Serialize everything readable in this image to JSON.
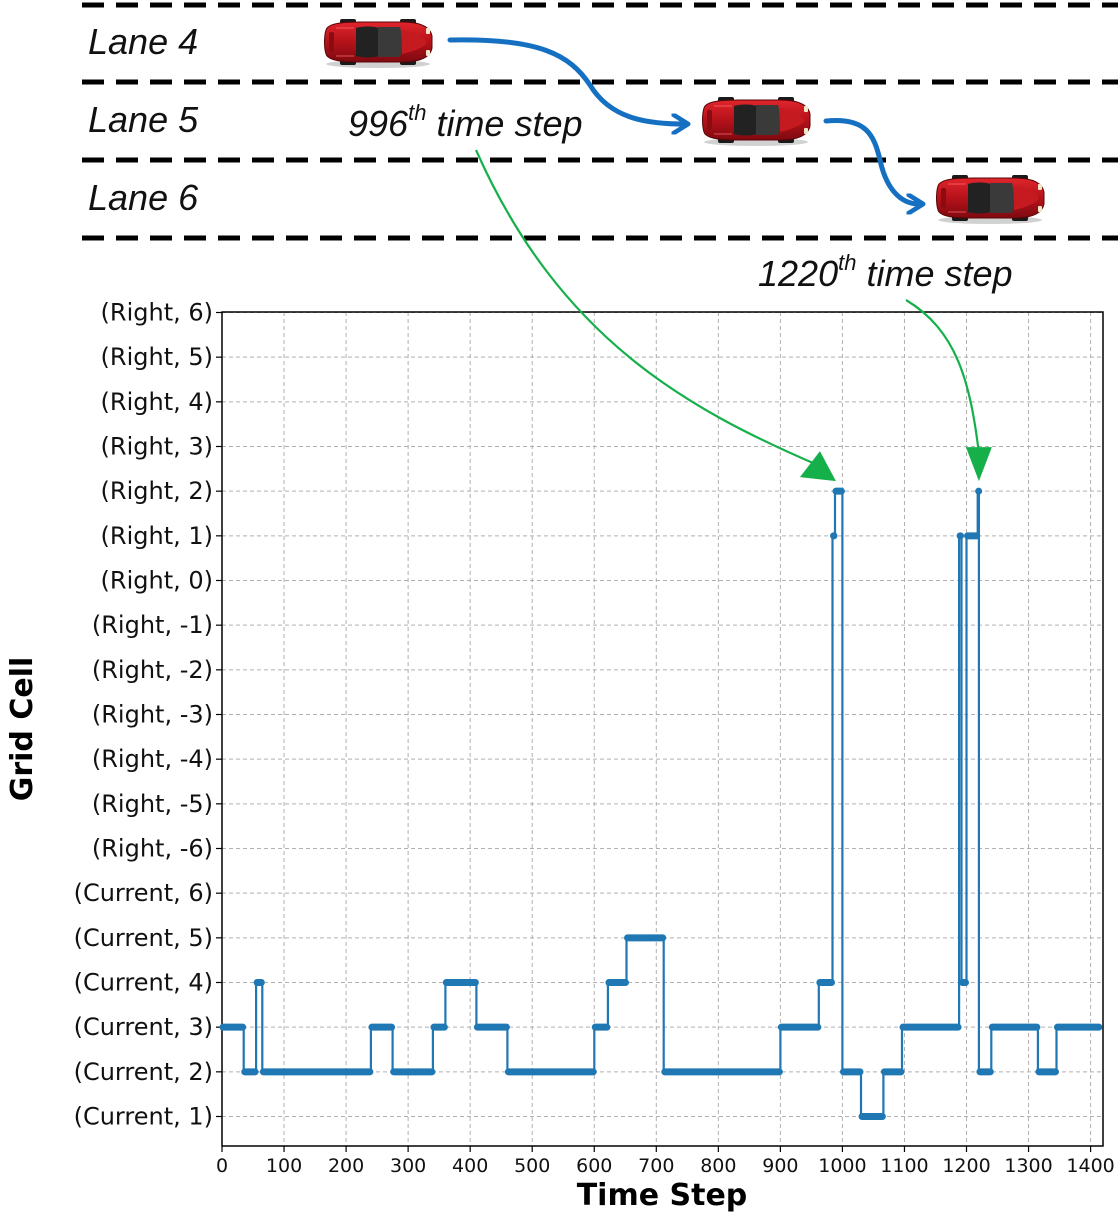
{
  "scene": {
    "lanes": [
      "Lane 4",
      "Lane 5",
      "Lane 6"
    ],
    "annotations": [
      {
        "number": "996",
        "sup": "th",
        "text": " time step"
      },
      {
        "number": "1220",
        "sup": "th",
        "text": " time step"
      }
    ],
    "colors": {
      "car": "#c3161c",
      "transition_arrow": "#1670c2",
      "pointer_arrow": "#16b04b"
    },
    "icons": [
      "car-icon",
      "car-icon",
      "car-icon"
    ]
  },
  "chart_data": {
    "type": "line",
    "xlabel": "Time Step",
    "ylabel": "Grid Cell",
    "xlim": [
      0,
      1420
    ],
    "xticks": [
      0,
      100,
      200,
      300,
      400,
      500,
      600,
      700,
      800,
      900,
      1000,
      1100,
      1200,
      1300,
      1400
    ],
    "y_categories": [
      "(Current, 1)",
      "(Current, 2)",
      "(Current, 3)",
      "(Current, 4)",
      "(Current, 5)",
      "(Current, 6)",
      "(Right, -6)",
      "(Right, -5)",
      "(Right, -4)",
      "(Right, -3)",
      "(Right, -2)",
      "(Right, -1)",
      "(Right, 0)",
      "(Right, 1)",
      "(Right, 2)",
      "(Right, 3)",
      "(Right, 4)",
      "(Right, 5)",
      "(Right, 6)"
    ],
    "grid": true,
    "series_color": "#1f77b4",
    "segments": [
      {
        "x0": 0,
        "x1": 35,
        "y": "(Current, 3)"
      },
      {
        "x0": 35,
        "x1": 55,
        "y": "(Current, 2)"
      },
      {
        "x0": 55,
        "x1": 65,
        "y": "(Current, 4)"
      },
      {
        "x0": 65,
        "x1": 240,
        "y": "(Current, 2)"
      },
      {
        "x0": 240,
        "x1": 275,
        "y": "(Current, 3)"
      },
      {
        "x0": 275,
        "x1": 340,
        "y": "(Current, 2)"
      },
      {
        "x0": 340,
        "x1": 360,
        "y": "(Current, 3)"
      },
      {
        "x0": 360,
        "x1": 410,
        "y": "(Current, 4)"
      },
      {
        "x0": 410,
        "x1": 460,
        "y": "(Current, 3)"
      },
      {
        "x0": 460,
        "x1": 600,
        "y": "(Current, 2)"
      },
      {
        "x0": 600,
        "x1": 622,
        "y": "(Current, 3)"
      },
      {
        "x0": 622,
        "x1": 652,
        "y": "(Current, 4)"
      },
      {
        "x0": 652,
        "x1": 712,
        "y": "(Current, 5)"
      },
      {
        "x0": 712,
        "x1": 900,
        "y": "(Current, 2)"
      },
      {
        "x0": 900,
        "x1": 962,
        "y": "(Current, 3)"
      },
      {
        "x0": 962,
        "x1": 984,
        "y": "(Current, 4)"
      },
      {
        "x0": 984,
        "x1": 988,
        "y": "(Right, 1)"
      },
      {
        "x0": 988,
        "x1": 1000,
        "y": "(Right, 2)"
      },
      {
        "x0": 1000,
        "x1": 1030,
        "y": "(Current, 2)"
      },
      {
        "x0": 1030,
        "x1": 1066,
        "y": "(Current, 1)"
      },
      {
        "x0": 1066,
        "x1": 1096,
        "y": "(Current, 2)"
      },
      {
        "x0": 1096,
        "x1": 1188,
        "y": "(Current, 3)"
      },
      {
        "x0": 1188,
        "x1": 1192,
        "y": "(Right, 1)"
      },
      {
        "x0": 1192,
        "x1": 1200,
        "y": "(Current, 4)"
      },
      {
        "x0": 1200,
        "x1": 1218,
        "y": "(Right, 1)"
      },
      {
        "x0": 1218,
        "x1": 1220,
        "y": "(Right, 2)"
      },
      {
        "x0": 1220,
        "x1": 1240,
        "y": "(Current, 2)"
      },
      {
        "x0": 1240,
        "x1": 1315,
        "y": "(Current, 3)"
      },
      {
        "x0": 1315,
        "x1": 1345,
        "y": "(Current, 2)"
      },
      {
        "x0": 1345,
        "x1": 1415,
        "y": "(Current, 3)"
      }
    ],
    "annotated_points": [
      {
        "x": 996,
        "y": "(Right, 2)"
      },
      {
        "x": 1220,
        "y": "(Right, 2)"
      }
    ]
  }
}
